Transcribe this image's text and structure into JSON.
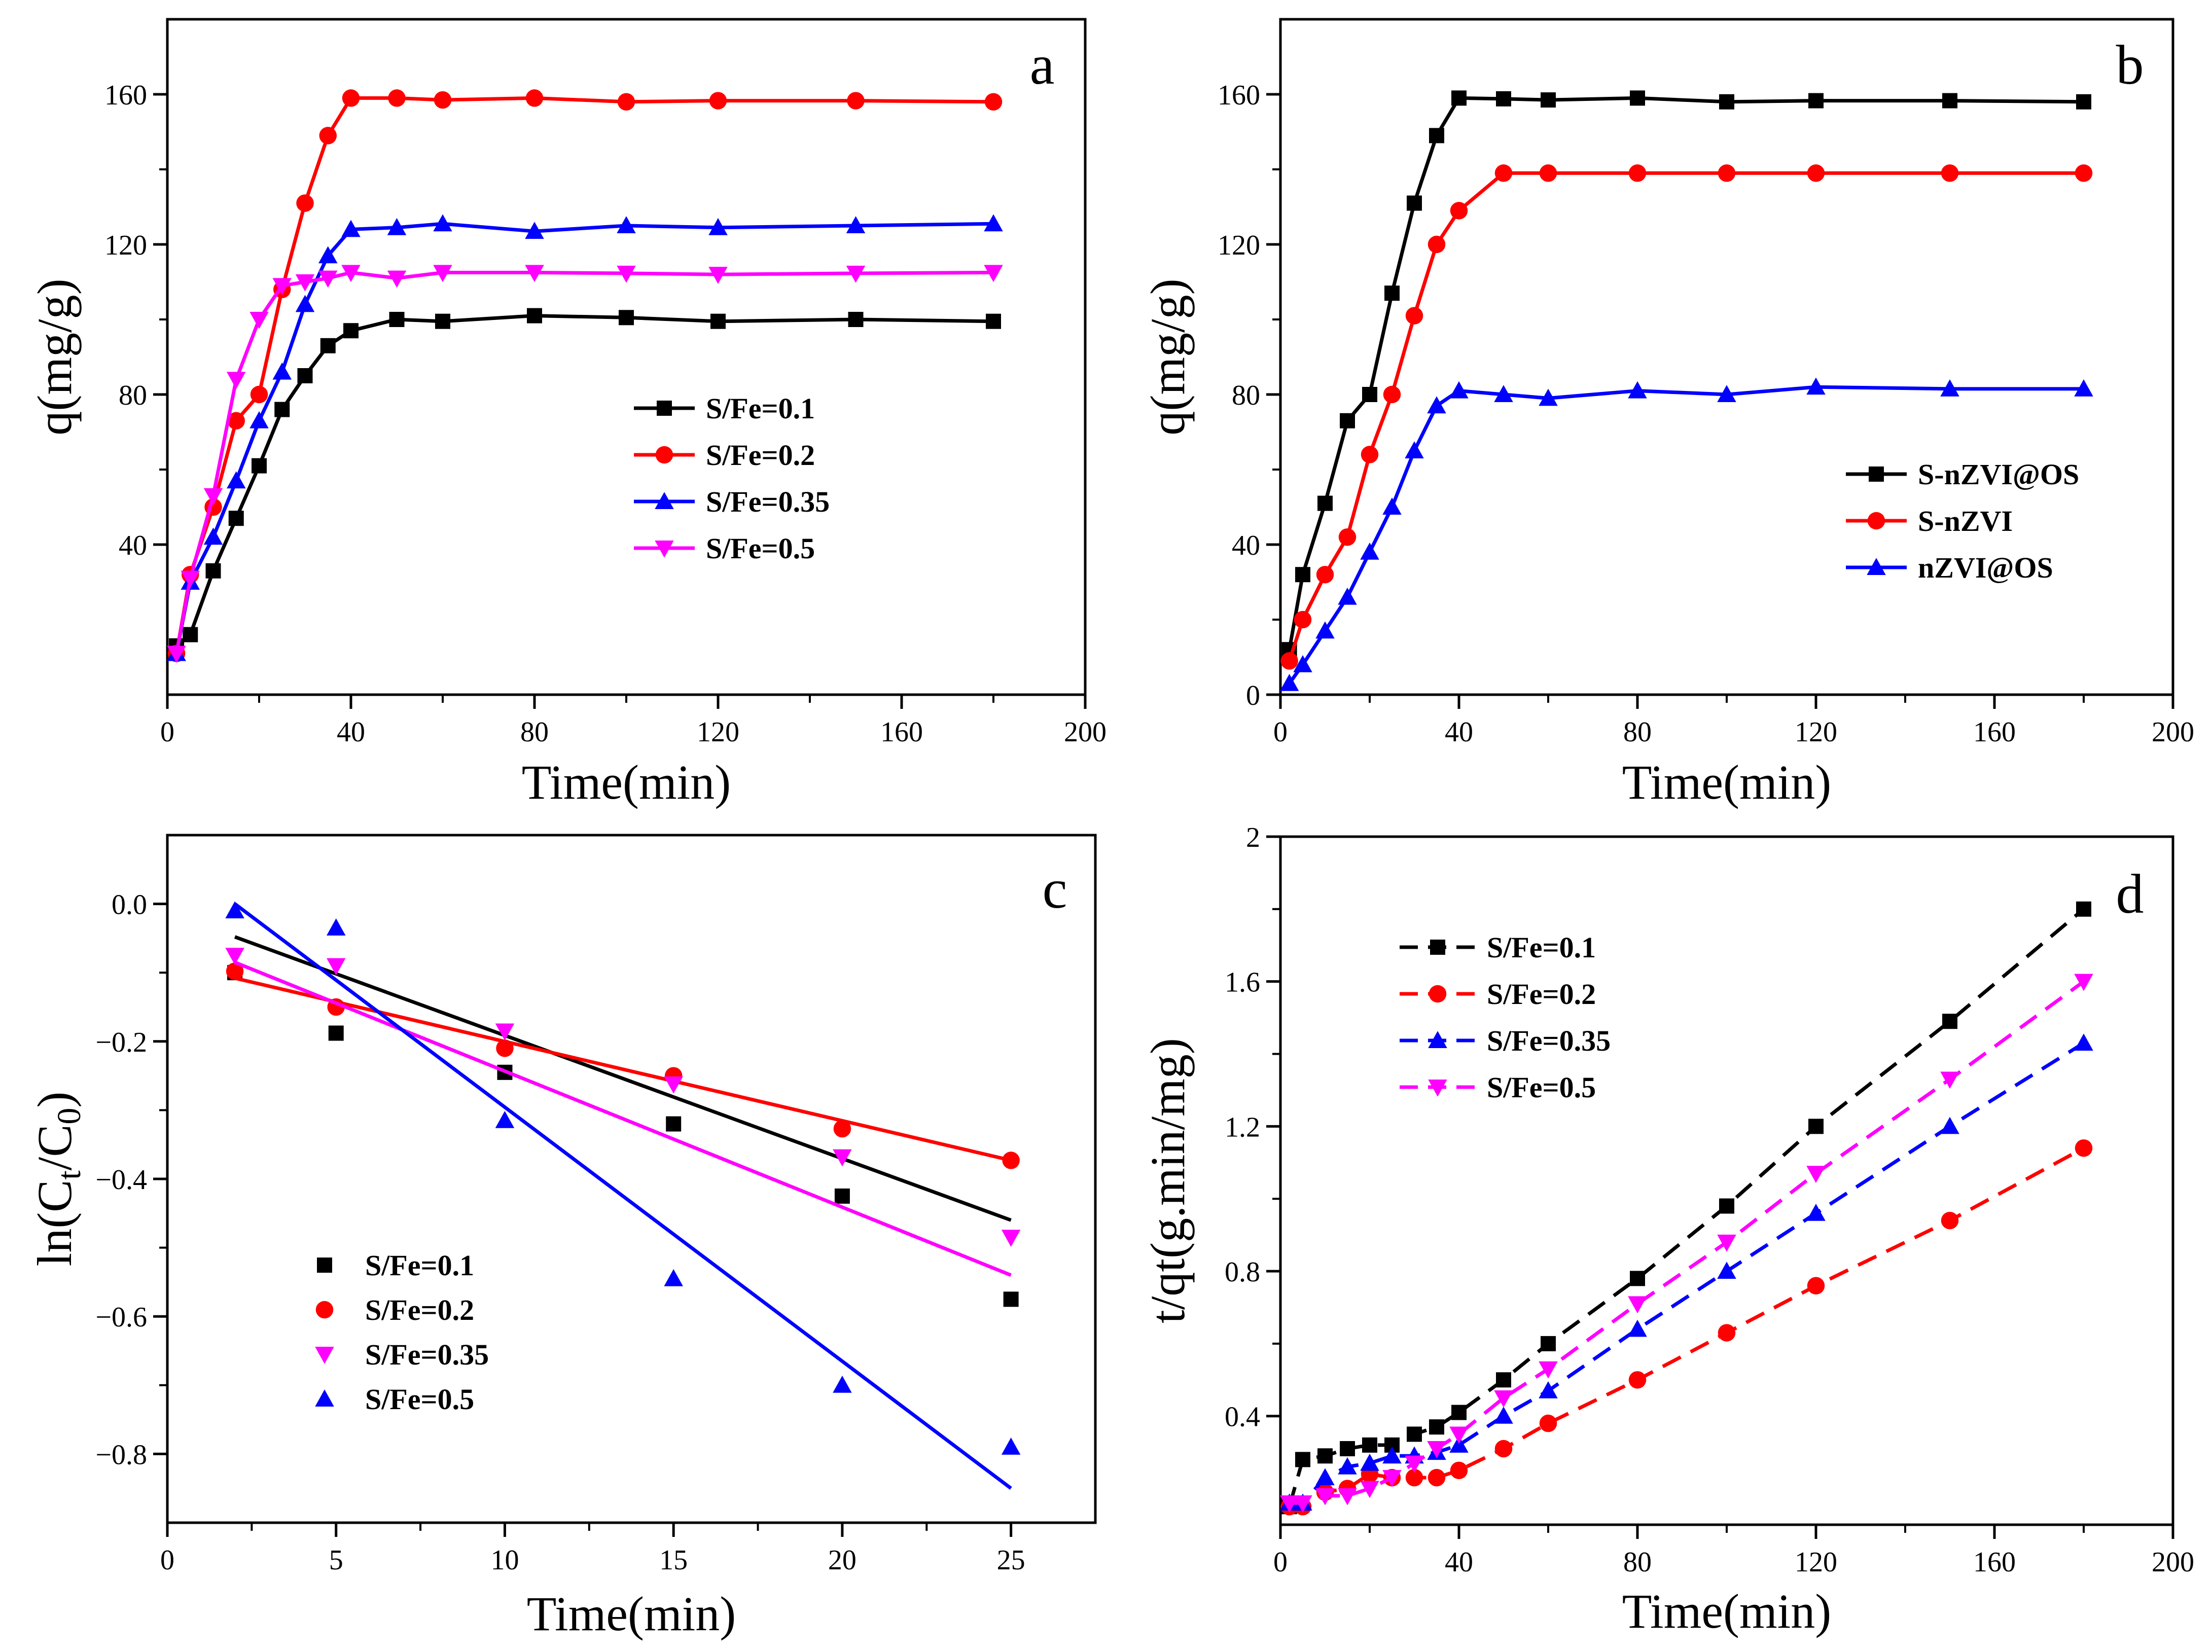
{
  "colors": {
    "black": "#000000",
    "red": "#ff0000",
    "blue": "#0000ff",
    "magenta": "#ff00ff"
  },
  "chart_data": [
    {
      "panel": "a",
      "type": "line",
      "xlabel": "Time(min)",
      "ylabel": "q(mg/g)",
      "xlim": [
        0,
        200
      ],
      "ylim": [
        0,
        180
      ],
      "xticks": [
        0,
        40,
        80,
        120,
        160,
        200
      ],
      "yticks": [
        40,
        80,
        120,
        160
      ],
      "legend_position": "center-right",
      "series": [
        {
          "name": "S/Fe=0.1",
          "color": "#000000",
          "marker": "square",
          "x": [
            2,
            5,
            10,
            15,
            20,
            25,
            30,
            35,
            40,
            50,
            60,
            80,
            100,
            120,
            150,
            180
          ],
          "y": [
            13,
            16,
            33,
            47,
            61,
            76,
            85,
            93,
            97,
            100,
            99.5,
            101,
            100.5,
            99.5,
            100,
            99.5
          ]
        },
        {
          "name": "S/Fe=0.2",
          "color": "#ff0000",
          "marker": "circle",
          "x": [
            2,
            5,
            10,
            15,
            20,
            25,
            30,
            35,
            40,
            50,
            60,
            80,
            100,
            120,
            150,
            180
          ],
          "y": [
            11,
            32,
            50,
            73,
            80,
            108,
            131,
            149,
            159,
            159,
            158.5,
            159,
            158,
            158.3,
            158.3,
            158
          ]
        },
        {
          "name": "S/Fe=0.35",
          "color": "#0000ff",
          "marker": "triangle-up",
          "x": [
            2,
            5,
            10,
            15,
            20,
            25,
            30,
            35,
            40,
            50,
            60,
            80,
            100,
            120,
            150,
            180
          ],
          "y": [
            11,
            30,
            42,
            57,
            73,
            86,
            104,
            117,
            124,
            124.5,
            125.5,
            123.5,
            125,
            124.5,
            125,
            125.5
          ]
        },
        {
          "name": "S/Fe=0.5",
          "color": "#ff00ff",
          "marker": "triangle-down",
          "x": [
            2,
            5,
            10,
            15,
            20,
            25,
            30,
            35,
            40,
            50,
            60,
            80,
            100,
            120,
            150,
            180
          ],
          "y": [
            11,
            31,
            53,
            84,
            100,
            109,
            110,
            111,
            112.5,
            111,
            112.5,
            112.5,
            112.3,
            112,
            112.3,
            112.5
          ]
        }
      ]
    },
    {
      "panel": "b",
      "type": "line",
      "xlabel": "Time(min)",
      "ylabel": "q(mg/g)",
      "xlim": [
        0,
        200
      ],
      "ylim": [
        0,
        180
      ],
      "xticks": [
        0,
        40,
        80,
        120,
        160,
        200
      ],
      "yticks": [
        0,
        40,
        80,
        120,
        160
      ],
      "legend_position": "center-right",
      "series": [
        {
          "name": "S-nZVI@OS",
          "color": "#000000",
          "marker": "square",
          "x": [
            2,
            5,
            10,
            15,
            20,
            25,
            30,
            35,
            40,
            50,
            60,
            80,
            100,
            120,
            150,
            180
          ],
          "y": [
            12,
            32,
            51,
            73,
            80,
            107,
            131,
            149,
            159,
            158.8,
            158.5,
            159,
            158,
            158.3,
            158.3,
            158
          ]
        },
        {
          "name": "S-nZVI",
          "color": "#ff0000",
          "marker": "circle",
          "x": [
            2,
            5,
            10,
            15,
            20,
            25,
            30,
            35,
            40,
            50,
            60,
            80,
            100,
            120,
            150,
            180
          ],
          "y": [
            9,
            20,
            32,
            42,
            64,
            80,
            101,
            120,
            129,
            139,
            139,
            139,
            139,
            139,
            139,
            139
          ]
        },
        {
          "name": "nZVI@OS",
          "color": "#0000ff",
          "marker": "triangle-up",
          "x": [
            2,
            5,
            10,
            15,
            20,
            25,
            30,
            35,
            40,
            50,
            60,
            80,
            100,
            120,
            150,
            180
          ],
          "y": [
            3,
            8,
            17,
            26,
            38,
            50,
            65,
            77,
            81,
            80,
            79,
            81,
            80,
            82,
            81.5,
            81.5
          ]
        }
      ]
    },
    {
      "panel": "c",
      "type": "scatter",
      "xlabel": "Time(min)",
      "ylabel": "ln(Ct/C0)",
      "ylabel_main": "ln(C",
      "ylabel_sub1": "t",
      "ylabel_mid": "/C",
      "ylabel_sub2": "0",
      "ylabel_end": ")",
      "xlim": [
        0,
        27.5
      ],
      "ylim": [
        -0.9,
        0.1
      ],
      "xticks": [
        0,
        5,
        10,
        15,
        20,
        25
      ],
      "yticks": [
        0.0,
        -0.2,
        -0.4,
        -0.6,
        -0.8
      ],
      "ytick_labels": [
        "0.0",
        "−0.2",
        "−0.4",
        "−0.6",
        "−0.8"
      ],
      "legend_position": "bottom-left",
      "series": [
        {
          "name": "S/Fe=0.1",
          "color": "#000000",
          "marker": "square",
          "x": [
            2,
            5,
            10,
            15,
            20,
            25
          ],
          "y": [
            -0.1,
            -0.188,
            -0.245,
            -0.32,
            -0.425,
            -0.575
          ],
          "fit": [
            [
              2,
              -0.048
            ],
            [
              25,
              -0.46
            ]
          ]
        },
        {
          "name": "S/Fe=0.2",
          "color": "#ff0000",
          "marker": "circle",
          "x": [
            2,
            5,
            10,
            15,
            20,
            25
          ],
          "y": [
            -0.098,
            -0.15,
            -0.21,
            -0.25,
            -0.327,
            -0.373
          ],
          "fit": [
            [
              2,
              -0.108
            ],
            [
              25,
              -0.373
            ]
          ]
        },
        {
          "name": "S/Fe=0.35",
          "color": "#ff00ff",
          "marker": "triangle-down",
          "x": [
            2,
            5,
            10,
            15,
            20,
            25
          ],
          "y": [
            -0.075,
            -0.09,
            -0.185,
            -0.262,
            -0.368,
            -0.485
          ],
          "fit": [
            [
              2,
              -0.085
            ],
            [
              25,
              -0.54
            ]
          ]
        },
        {
          "name": "S/Fe=0.5",
          "color": "#0000ff",
          "marker": "triangle-up",
          "x": [
            2,
            5,
            10,
            15,
            20,
            25
          ],
          "y": [
            -0.01,
            -0.035,
            -0.315,
            -0.545,
            -0.7,
            -0.79
          ],
          "fit": [
            [
              2,
              0.0
            ],
            [
              25,
              -0.85
            ]
          ]
        }
      ]
    },
    {
      "panel": "d",
      "type": "line",
      "xlabel": "Time(min)",
      "ylabel": "t/qt(g.min/mg)",
      "xlim": [
        0,
        200
      ],
      "ylim": [
        0.1,
        2.0
      ],
      "xticks": [
        0,
        40,
        80,
        120,
        160,
        200
      ],
      "yticks": [
        0.4,
        0.8,
        1.2,
        1.6,
        2.0
      ],
      "legend_position": "top-left",
      "series": [
        {
          "name": "S/Fe=0.1",
          "color": "#000000",
          "marker": "square",
          "x": [
            2,
            5,
            10,
            15,
            20,
            25,
            30,
            35,
            40,
            50,
            60,
            80,
            100,
            120,
            150,
            180
          ],
          "y": [
            0.15,
            0.28,
            0.29,
            0.31,
            0.32,
            0.32,
            0.35,
            0.37,
            0.41,
            0.5,
            0.6,
            0.78,
            0.98,
            1.2,
            1.49,
            1.8
          ]
        },
        {
          "name": "S/Fe=0.2",
          "color": "#ff0000",
          "marker": "circle",
          "x": [
            2,
            5,
            10,
            15,
            20,
            25,
            30,
            35,
            40,
            50,
            60,
            80,
            100,
            120,
            150,
            180
          ],
          "y": [
            0.15,
            0.15,
            0.19,
            0.2,
            0.24,
            0.23,
            0.23,
            0.23,
            0.25,
            0.31,
            0.38,
            0.5,
            0.63,
            0.76,
            0.94,
            1.14
          ]
        },
        {
          "name": "S/Fe=0.35",
          "color": "#0000ff",
          "marker": "triangle-up",
          "x": [
            2,
            5,
            10,
            15,
            20,
            25,
            30,
            35,
            40,
            50,
            60,
            80,
            100,
            120,
            150,
            180
          ],
          "y": [
            0.16,
            0.16,
            0.23,
            0.26,
            0.27,
            0.29,
            0.29,
            0.3,
            0.32,
            0.4,
            0.47,
            0.64,
            0.8,
            0.96,
            1.2,
            1.43
          ]
        },
        {
          "name": "S/Fe=0.5",
          "color": "#ff00ff",
          "marker": "triangle-down",
          "x": [
            2,
            5,
            10,
            15,
            20,
            25,
            30,
            35,
            40,
            50,
            60,
            80,
            100,
            120,
            150,
            180
          ],
          "y": [
            0.16,
            0.16,
            0.18,
            0.18,
            0.2,
            0.23,
            0.27,
            0.31,
            0.35,
            0.45,
            0.53,
            0.71,
            0.88,
            1.07,
            1.33,
            1.6
          ]
        }
      ]
    }
  ]
}
